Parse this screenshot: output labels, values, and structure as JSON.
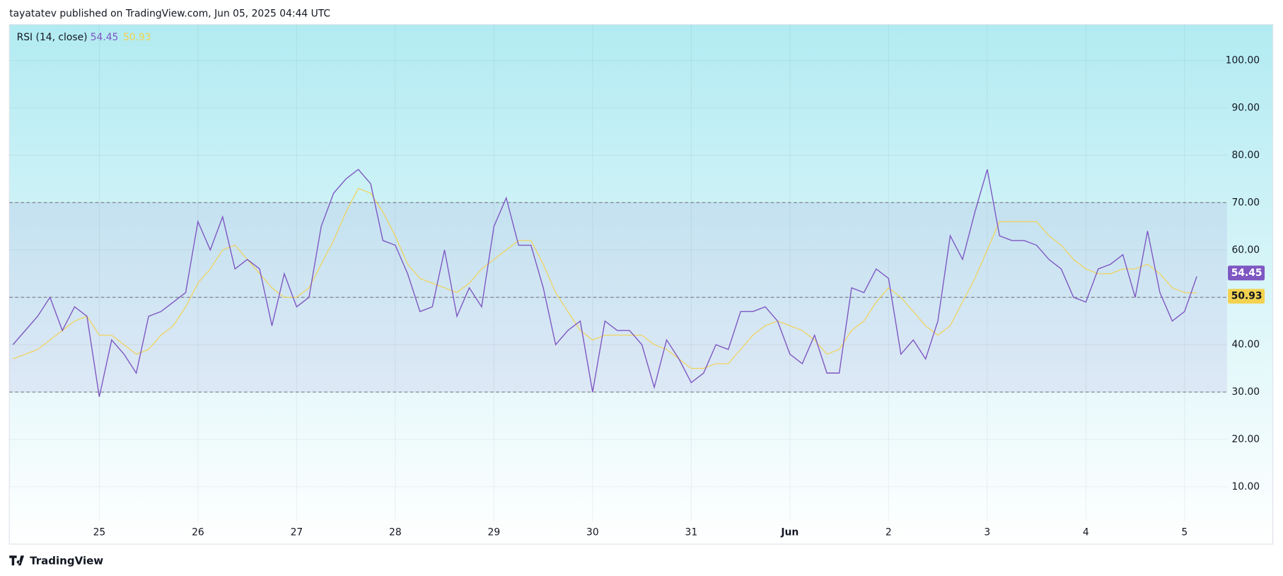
{
  "header": "tayatatev published on TradingView.com, Jun 05, 2025 04:44 UTC",
  "footer": "TradingView",
  "chart_data": {
    "type": "line",
    "ylim": [
      -2.1,
      107.6
    ],
    "yticks": [
      {
        "value": 10,
        "label": "10.00"
      },
      {
        "value": 20,
        "label": "20.00"
      },
      {
        "value": 30,
        "label": "30.00"
      },
      {
        "value": 40,
        "label": "40.00"
      },
      {
        "value": 50,
        "label": "50.00"
      },
      {
        "value": 60,
        "label": "60.00"
      },
      {
        "value": 70,
        "label": "70.00"
      },
      {
        "value": 80,
        "label": "80.00"
      },
      {
        "value": 90,
        "label": "90.00"
      },
      {
        "value": 100,
        "label": "100.00"
      }
    ],
    "xticks": [
      {
        "value": 7,
        "label": "25"
      },
      {
        "value": 15,
        "label": "26"
      },
      {
        "value": 23,
        "label": "27"
      },
      {
        "value": 31,
        "label": "28"
      },
      {
        "value": 39,
        "label": "29"
      },
      {
        "value": 47,
        "label": "30"
      },
      {
        "value": 55,
        "label": "31"
      },
      {
        "value": 63,
        "label": "Jun"
      },
      {
        "value": 71,
        "label": "2"
      },
      {
        "value": 79,
        "label": "3"
      },
      {
        "value": 87,
        "label": "4"
      },
      {
        "value": 95,
        "label": "5"
      }
    ],
    "hlines": [
      70,
      50,
      30
    ],
    "grid": true,
    "series": [
      {
        "name": "RSI (14, close)",
        "color": "#7e57c2",
        "values": [
          40,
          43,
          46,
          50,
          43,
          48,
          46,
          29,
          41,
          38,
          34,
          46,
          47,
          49,
          51,
          66,
          60,
          67,
          56,
          58,
          56,
          44,
          55,
          48,
          50,
          65,
          72,
          75,
          77,
          74,
          62,
          61,
          55,
          47,
          48,
          60,
          46,
          52,
          48,
          65,
          71,
          61,
          61,
          52,
          40,
          43,
          45,
          30,
          45,
          43,
          43,
          40,
          31,
          41,
          37,
          32,
          34,
          40,
          39,
          47,
          47,
          48,
          45,
          38,
          36,
          42,
          34,
          34,
          52,
          51,
          56,
          54,
          38,
          41,
          37,
          45,
          63,
          58,
          68,
          77,
          63,
          62,
          62,
          61,
          58,
          56,
          50,
          49,
          56,
          57,
          59,
          50,
          64,
          51,
          45,
          47,
          54.45
        ]
      },
      {
        "color": "#f2d250",
        "values": [
          37,
          38,
          39,
          41,
          43,
          45,
          46,
          42,
          42,
          40,
          38,
          39,
          42,
          44,
          48,
          53,
          56,
          60,
          61,
          58,
          55,
          52,
          50,
          50,
          52,
          57,
          62,
          68,
          73,
          72,
          68,
          63,
          57,
          54,
          53,
          52,
          51,
          53,
          56,
          58,
          60,
          62,
          62,
          57,
          51,
          47,
          43,
          41,
          42,
          42,
          42,
          42,
          40,
          39,
          37,
          35,
          35,
          36,
          36,
          39,
          42,
          44,
          45,
          44,
          43,
          41,
          38,
          39,
          43,
          45,
          49,
          52,
          50,
          47,
          44,
          42,
          44,
          49,
          54,
          60,
          66,
          66,
          66,
          66,
          63,
          61,
          58,
          56,
          55,
          55,
          56,
          56,
          57,
          55,
          52,
          51,
          50.93
        ]
      }
    ]
  }
}
